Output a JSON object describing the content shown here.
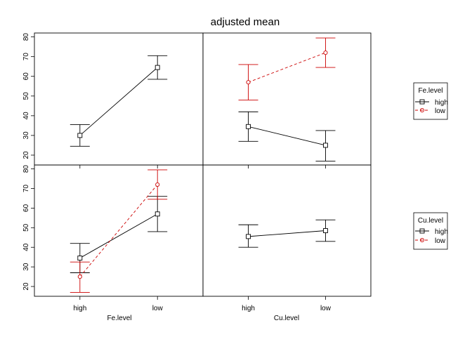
{
  "title": "adjusted mean",
  "chart_data": {
    "type": "line",
    "title": "adjusted mean",
    "panels": [
      {
        "id": "tl",
        "x_factor": "Fe.level",
        "trace_factor": null,
        "categories": [
          "high",
          "low"
        ],
        "ylim": [
          15,
          82
        ],
        "series": [
          {
            "name": "",
            "color": "#000000",
            "dash": "",
            "marker": "square",
            "values": [
              30,
              64.5
            ],
            "lower": [
              24.5,
              58.5
            ],
            "upper": [
              35.5,
              70.5
            ]
          }
        ]
      },
      {
        "id": "tr",
        "x_factor": "Cu.level",
        "trace_factor": "Fe.level",
        "categories": [
          "high",
          "low"
        ],
        "ylim": [
          15,
          82
        ],
        "series": [
          {
            "name": "high",
            "color": "#000000",
            "dash": "",
            "marker": "square",
            "values": [
              34.5,
              25
            ],
            "lower": [
              27,
              17
            ],
            "upper": [
              42,
              32.5
            ]
          },
          {
            "name": "low",
            "color": "#cc0000",
            "dash": "4,3",
            "marker": "circle",
            "values": [
              57,
              72
            ],
            "lower": [
              48,
              64.5
            ],
            "upper": [
              66,
              79.5
            ]
          }
        ]
      },
      {
        "id": "bl",
        "x_factor": "Fe.level",
        "trace_factor": "Cu.level",
        "categories": [
          "high",
          "low"
        ],
        "ylim": [
          15,
          82
        ],
        "series": [
          {
            "name": "high",
            "color": "#000000",
            "dash": "",
            "marker": "square",
            "values": [
              34.5,
              57
            ],
            "lower": [
              27,
              48
            ],
            "upper": [
              42,
              66
            ]
          },
          {
            "name": "low",
            "color": "#cc0000",
            "dash": "4,3",
            "marker": "circle",
            "values": [
              25,
              72
            ],
            "lower": [
              17,
              64.5
            ],
            "upper": [
              32.5,
              79.5
            ]
          }
        ]
      },
      {
        "id": "br",
        "x_factor": "Cu.level",
        "trace_factor": null,
        "categories": [
          "high",
          "low"
        ],
        "ylim": [
          15,
          82
        ],
        "series": [
          {
            "name": "",
            "color": "#000000",
            "dash": "",
            "marker": "square",
            "values": [
              45.5,
              48.5
            ],
            "lower": [
              40,
              43
            ],
            "upper": [
              51.5,
              54
            ]
          }
        ]
      }
    ],
    "yticks": [
      20,
      30,
      40,
      50,
      60,
      70,
      80
    ],
    "xlabels": [
      "Fe.level",
      "Cu.level"
    ],
    "legends": [
      {
        "title": "Fe.level",
        "entries": [
          "high",
          "low"
        ]
      },
      {
        "title": "Cu.level",
        "entries": [
          "high",
          "low"
        ]
      }
    ],
    "grid": false
  }
}
